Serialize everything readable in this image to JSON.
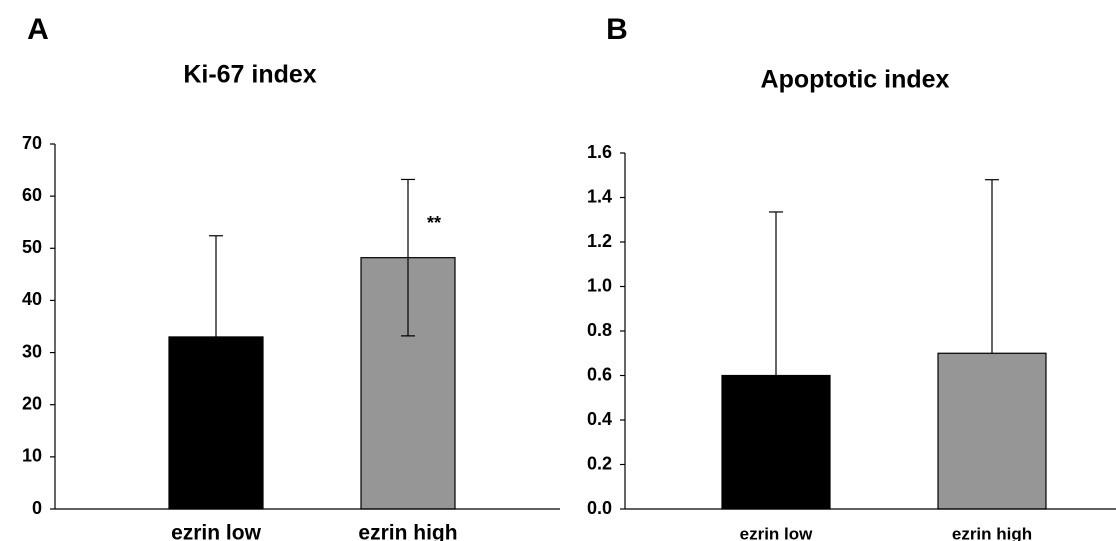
{
  "chart_data": [
    {
      "type": "bar",
      "panel_label": "A",
      "title": "Ki-67 index",
      "categories": [
        "ezrin low",
        "ezrin high"
      ],
      "values": [
        33,
        48.2
      ],
      "error_upper": [
        19.4,
        15
      ],
      "error_lower": [
        0,
        15
      ],
      "colors": [
        "#000000",
        "#969696"
      ],
      "ylim": [
        0,
        70
      ],
      "yticks": [
        "0",
        "10",
        "20",
        "30",
        "40",
        "50",
        "60",
        "70"
      ],
      "annotations": [
        {
          "category": "ezrin high",
          "text": "**"
        }
      ],
      "grid": false,
      "legend": "none"
    },
    {
      "type": "bar",
      "panel_label": "B",
      "title": "Apoptotic index",
      "categories": [
        "ezrin low",
        "ezrin high"
      ],
      "values": [
        0.6,
        0.7
      ],
      "error_upper": [
        0.735,
        0.78
      ],
      "error_lower": [
        0,
        0
      ],
      "colors": [
        "#000000",
        "#969696"
      ],
      "ylim": [
        0,
        1.6
      ],
      "yticks": [
        "0.0",
        "0.2",
        "0.4",
        "0.6",
        "0.8",
        "1.0",
        "1.2",
        "1.4",
        "1.6"
      ],
      "annotations": [],
      "grid": false,
      "legend": "none"
    }
  ]
}
